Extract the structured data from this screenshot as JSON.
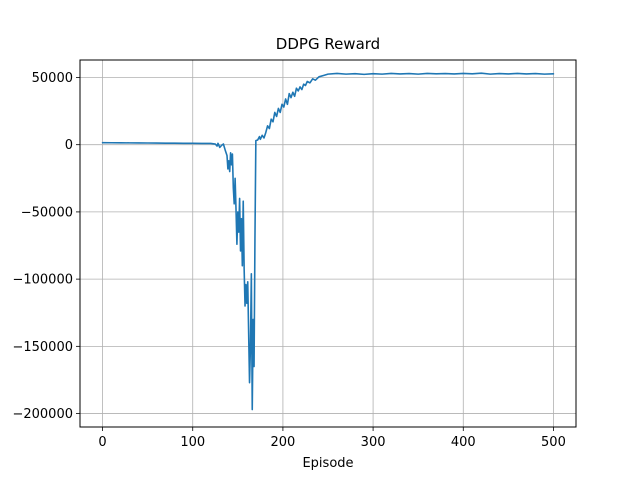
{
  "chart_data": {
    "type": "line",
    "title": "DDPG Reward",
    "xlabel": "Episode",
    "ylabel": "",
    "xlim": [
      -25,
      525
    ],
    "ylim": [
      -210000,
      63000
    ],
    "x_ticks": [
      0,
      100,
      200,
      300,
      400,
      500
    ],
    "y_ticks": [
      50000,
      0,
      -50000,
      -100000,
      -150000,
      -200000
    ],
    "x_tick_labels": [
      "0",
      "100",
      "200",
      "300",
      "400",
      "500"
    ],
    "y_tick_labels": [
      "50000",
      "0",
      "−50000",
      "−100000",
      "−150000",
      "−200000"
    ],
    "grid": true,
    "legend": "none",
    "colors": {
      "line": "#1f77b4",
      "grid": "#b0b0b0",
      "axes": "#000000"
    },
    "series": [
      {
        "points": [
          [
            0,
            1500
          ],
          [
            10,
            1450
          ],
          [
            20,
            1400
          ],
          [
            30,
            1350
          ],
          [
            40,
            1300
          ],
          [
            50,
            1250
          ],
          [
            60,
            1200
          ],
          [
            70,
            1150
          ],
          [
            80,
            1100
          ],
          [
            90,
            1050
          ],
          [
            100,
            1000
          ],
          [
            110,
            950
          ],
          [
            120,
            900
          ],
          [
            125,
            500
          ],
          [
            127,
            -1000
          ],
          [
            128,
            1000
          ],
          [
            130,
            -2000
          ],
          [
            132,
            -500
          ],
          [
            134,
            500
          ],
          [
            136,
            -4000
          ],
          [
            138,
            -8000
          ],
          [
            139,
            -18000
          ],
          [
            140,
            -12000
          ],
          [
            141,
            -20000
          ],
          [
            142,
            -6000
          ],
          [
            143,
            -15000
          ],
          [
            144,
            -7000
          ],
          [
            145,
            -32000
          ],
          [
            146,
            -44000
          ],
          [
            147,
            -25000
          ],
          [
            148,
            -48000
          ],
          [
            149,
            -74000
          ],
          [
            150,
            -50000
          ],
          [
            151,
            -65000
          ],
          [
            152,
            -40000
          ],
          [
            153,
            -79000
          ],
          [
            154,
            -55000
          ],
          [
            155,
            -90000
          ],
          [
            156,
            -42000
          ],
          [
            157,
            -92000
          ],
          [
            158,
            -120000
          ],
          [
            159,
            -104000
          ],
          [
            160,
            -118000
          ],
          [
            161,
            -102000
          ],
          [
            162,
            -140000
          ],
          [
            163,
            -177000
          ],
          [
            164,
            -150000
          ],
          [
            165,
            -96000
          ],
          [
            166,
            -197000
          ],
          [
            167,
            -130000
          ],
          [
            168,
            -165000
          ],
          [
            169,
            -70000
          ],
          [
            170,
            3000
          ],
          [
            172,
            3500
          ],
          [
            174,
            6000
          ],
          [
            175,
            4000
          ],
          [
            177,
            7000
          ],
          [
            179,
            5000
          ],
          [
            181,
            9000
          ],
          [
            183,
            14000
          ],
          [
            185,
            12000
          ],
          [
            187,
            19000
          ],
          [
            189,
            17000
          ],
          [
            191,
            24000
          ],
          [
            193,
            21000
          ],
          [
            195,
            27000
          ],
          [
            197,
            24000
          ],
          [
            199,
            30000
          ],
          [
            201,
            28000
          ],
          [
            203,
            34000
          ],
          [
            205,
            30000
          ],
          [
            207,
            38000
          ],
          [
            209,
            35000
          ],
          [
            211,
            39000
          ],
          [
            213,
            36000
          ],
          [
            215,
            42000
          ],
          [
            217,
            40000
          ],
          [
            219,
            43000
          ],
          [
            221,
            41000
          ],
          [
            223,
            45000
          ],
          [
            225,
            44000
          ],
          [
            227,
            47000
          ],
          [
            230,
            46000
          ],
          [
            233,
            49000
          ],
          [
            236,
            48000
          ],
          [
            240,
            50500
          ],
          [
            245,
            51500
          ],
          [
            250,
            52500
          ],
          [
            260,
            53000
          ],
          [
            270,
            52500
          ],
          [
            280,
            52800
          ],
          [
            290,
            52300
          ],
          [
            300,
            52800
          ],
          [
            310,
            52500
          ],
          [
            320,
            53000
          ],
          [
            330,
            52600
          ],
          [
            340,
            52900
          ],
          [
            350,
            52500
          ],
          [
            360,
            53000
          ],
          [
            370,
            52700
          ],
          [
            380,
            52900
          ],
          [
            390,
            52600
          ],
          [
            400,
            53000
          ],
          [
            410,
            52700
          ],
          [
            420,
            53200
          ],
          [
            430,
            52500
          ],
          [
            440,
            52900
          ],
          [
            450,
            52600
          ],
          [
            460,
            53000
          ],
          [
            470,
            52600
          ],
          [
            480,
            52900
          ],
          [
            490,
            52500
          ],
          [
            500,
            52700
          ]
        ]
      }
    ]
  }
}
